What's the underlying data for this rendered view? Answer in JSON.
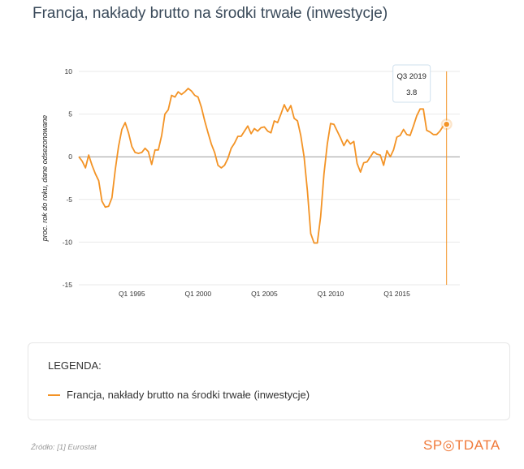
{
  "title": "Francja, nakłady brutto na środki trwałe (inwestycje)",
  "legend": {
    "heading": "LEGENDA:",
    "entry": "Francja, nakłady brutto na środki trwałe (inwestycje)"
  },
  "source": "Źródło: [1] Eurostat",
  "brand": {
    "pre": "SP",
    "post": "TDATA"
  },
  "colors": {
    "series": "#f39325",
    "brand": "#f07a3a",
    "axis_zero": "#999999",
    "grid": "#e9e9e9"
  },
  "tooltip": {
    "label": "Q3 2019",
    "value": "3.8"
  },
  "chart_data": {
    "type": "line",
    "ylabel": "proc. rok do roku, dane odsezonowane",
    "ylim": [
      -15,
      10
    ],
    "yticks": [
      10,
      5,
      0,
      -5,
      -10,
      -15
    ],
    "xticks": [
      "Q1 1995",
      "Q1 2000",
      "Q1 2005",
      "Q1 2010",
      "Q1 2015"
    ],
    "xlim": [
      1991,
      2019.75
    ],
    "series": [
      {
        "name": "Francja, nakłady brutto na środki trwałe (inwestycje)",
        "points": [
          [
            1991.0,
            0.0
          ],
          [
            1991.25,
            -0.5
          ],
          [
            1991.5,
            -1.3
          ],
          [
            1991.75,
            0.2
          ],
          [
            1992.0,
            -1.0
          ],
          [
            1992.25,
            -2.0
          ],
          [
            1992.5,
            -2.8
          ],
          [
            1992.75,
            -5.2
          ],
          [
            1993.0,
            -5.9
          ],
          [
            1993.25,
            -5.8
          ],
          [
            1993.5,
            -4.8
          ],
          [
            1993.75,
            -1.5
          ],
          [
            1994.0,
            1.2
          ],
          [
            1994.25,
            3.2
          ],
          [
            1994.5,
            4.0
          ],
          [
            1994.75,
            2.8
          ],
          [
            1995.0,
            1.2
          ],
          [
            1995.25,
            0.5
          ],
          [
            1995.5,
            0.4
          ],
          [
            1995.75,
            0.5
          ],
          [
            1996.0,
            1.0
          ],
          [
            1996.25,
            0.6
          ],
          [
            1996.5,
            -0.9
          ],
          [
            1996.75,
            0.8
          ],
          [
            1997.0,
            0.8
          ],
          [
            1997.25,
            2.5
          ],
          [
            1997.5,
            5.0
          ],
          [
            1997.75,
            5.5
          ],
          [
            1998.0,
            7.2
          ],
          [
            1998.25,
            7.0
          ],
          [
            1998.5,
            7.6
          ],
          [
            1998.75,
            7.3
          ],
          [
            1999.0,
            7.6
          ],
          [
            1999.25,
            8.0
          ],
          [
            1999.5,
            7.7
          ],
          [
            1999.75,
            7.2
          ],
          [
            2000.0,
            7.0
          ],
          [
            2000.25,
            5.8
          ],
          [
            2000.5,
            4.2
          ],
          [
            2000.75,
            2.8
          ],
          [
            2001.0,
            1.5
          ],
          [
            2001.25,
            0.5
          ],
          [
            2001.5,
            -1.0
          ],
          [
            2001.75,
            -1.3
          ],
          [
            2002.0,
            -1.0
          ],
          [
            2002.25,
            -0.2
          ],
          [
            2002.5,
            1.0
          ],
          [
            2002.75,
            1.6
          ],
          [
            2003.0,
            2.4
          ],
          [
            2003.25,
            2.4
          ],
          [
            2003.5,
            3.0
          ],
          [
            2003.75,
            3.6
          ],
          [
            2004.0,
            2.7
          ],
          [
            2004.25,
            3.3
          ],
          [
            2004.5,
            3.0
          ],
          [
            2004.75,
            3.4
          ],
          [
            2005.0,
            3.5
          ],
          [
            2005.25,
            3.0
          ],
          [
            2005.5,
            2.8
          ],
          [
            2005.75,
            4.2
          ],
          [
            2006.0,
            4.0
          ],
          [
            2006.25,
            5.0
          ],
          [
            2006.5,
            6.1
          ],
          [
            2006.75,
            5.3
          ],
          [
            2007.0,
            6.0
          ],
          [
            2007.25,
            4.5
          ],
          [
            2007.5,
            4.2
          ],
          [
            2007.75,
            2.5
          ],
          [
            2008.0,
            0.0
          ],
          [
            2008.25,
            -4.0
          ],
          [
            2008.5,
            -9.0
          ],
          [
            2008.75,
            -10.1
          ],
          [
            2009.0,
            -10.1
          ],
          [
            2009.25,
            -7.0
          ],
          [
            2009.5,
            -2.0
          ],
          [
            2009.75,
            1.5
          ],
          [
            2010.0,
            3.9
          ],
          [
            2010.25,
            3.8
          ],
          [
            2010.5,
            3.0
          ],
          [
            2010.75,
            2.2
          ],
          [
            2011.0,
            1.3
          ],
          [
            2011.25,
            2.0
          ],
          [
            2011.5,
            1.5
          ],
          [
            2011.75,
            1.8
          ],
          [
            2012.0,
            -0.8
          ],
          [
            2012.25,
            -1.8
          ],
          [
            2012.5,
            -0.7
          ],
          [
            2012.75,
            -0.6
          ],
          [
            2013.0,
            0.0
          ],
          [
            2013.25,
            0.6
          ],
          [
            2013.5,
            0.3
          ],
          [
            2013.75,
            0.2
          ],
          [
            2014.0,
            -1.0
          ],
          [
            2014.25,
            0.7
          ],
          [
            2014.5,
            0.0
          ],
          [
            2014.75,
            0.8
          ],
          [
            2015.0,
            2.3
          ],
          [
            2015.25,
            2.5
          ],
          [
            2015.5,
            3.2
          ],
          [
            2015.75,
            2.6
          ],
          [
            2016.0,
            2.5
          ],
          [
            2016.25,
            3.6
          ],
          [
            2016.5,
            4.8
          ],
          [
            2016.75,
            5.6
          ],
          [
            2017.0,
            5.6
          ],
          [
            2017.25,
            3.1
          ],
          [
            2017.5,
            2.9
          ],
          [
            2017.75,
            2.6
          ],
          [
            2018.0,
            2.6
          ],
          [
            2018.25,
            3.0
          ],
          [
            2018.5,
            3.6
          ],
          [
            2018.75,
            3.8
          ]
        ]
      }
    ]
  }
}
